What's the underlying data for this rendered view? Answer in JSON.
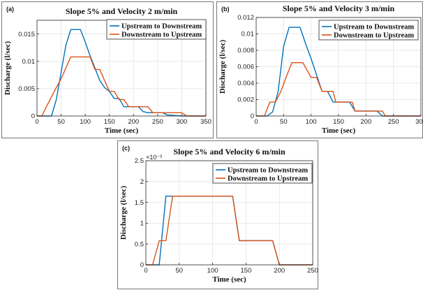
{
  "colors": {
    "upstream": "#0072BD",
    "downstream": "#D95319",
    "grid": "#e3e3e3",
    "axis": "#262626"
  },
  "legend": {
    "upstream": "Upstream to Downstream",
    "downstream": "Downstream to Upstream"
  },
  "chart_data": [
    {
      "panel_label": "(a)",
      "type": "line",
      "title": "Slope 5% and Velocity 2 m/min",
      "xlabel": "Time (sec)",
      "ylabel": "Discharge (l/sec)",
      "xlim": [
        0,
        350
      ],
      "ylim": [
        0,
        0.0175
      ],
      "xticks": [
        0,
        50,
        100,
        150,
        200,
        250,
        300,
        350
      ],
      "yticks": [
        0,
        0.005,
        0.01,
        0.015
      ],
      "ytick_labels": [
        "0",
        "0.005",
        "0.01",
        "0.015"
      ],
      "y_exponent": "",
      "grid": true,
      "legend_position": "top-right",
      "series": [
        {
          "name": "Upstream to Downstream",
          "color": "#0072BD",
          "x": [
            0,
            30,
            40,
            50,
            60,
            70,
            90,
            100,
            110,
            120,
            130,
            140,
            150,
            160,
            170,
            180,
            190,
            210,
            220,
            230,
            260,
            270,
            300,
            350
          ],
          "y": [
            0,
            0,
            0.003,
            0.008,
            0.013,
            0.0158,
            0.0158,
            0.0135,
            0.011,
            0.0088,
            0.0065,
            0.0052,
            0.0045,
            0.0032,
            0.0032,
            0.0017,
            0.0017,
            0.0017,
            0.0008,
            0.0006,
            0.0006,
            0.0002,
            0,
            0
          ]
        },
        {
          "name": "Downstream to Upstream",
          "color": "#D95319",
          "x": [
            0,
            10,
            20,
            30,
            40,
            50,
            60,
            70,
            110,
            120,
            130,
            140,
            150,
            160,
            170,
            180,
            190,
            200,
            230,
            240,
            300,
            310,
            350
          ],
          "y": [
            0,
            0,
            0.0018,
            0.0035,
            0.0052,
            0.0068,
            0.0088,
            0.0108,
            0.0108,
            0.0085,
            0.0085,
            0.0065,
            0.0045,
            0.0045,
            0.003,
            0.003,
            0.0017,
            0.0017,
            0.0017,
            0.0006,
            0.0006,
            0,
            0
          ]
        }
      ]
    },
    {
      "panel_label": "(b)",
      "type": "line",
      "title": "Slope 5% and Velocity 3 m/min",
      "xlabel": "Time (sec)",
      "ylabel": "Discharge (l/sec)",
      "xlim": [
        0,
        300
      ],
      "ylim": [
        0,
        0.012
      ],
      "xticks": [
        0,
        50,
        100,
        150,
        200,
        250,
        300
      ],
      "yticks": [
        0,
        0.002,
        0.004,
        0.006,
        0.008,
        0.01,
        0.012
      ],
      "ytick_labels": [
        "0",
        "0.002",
        "0.004",
        "0.006",
        "0.008",
        "0.01",
        "0.012"
      ],
      "y_exponent": "",
      "grid": true,
      "legend_position": "top-right",
      "series": [
        {
          "name": "Upstream to Downstream",
          "color": "#0072BD",
          "x": [
            0,
            20,
            30,
            40,
            50,
            60,
            80,
            90,
            100,
            110,
            120,
            130,
            140,
            150,
            170,
            180,
            190,
            210,
            220,
            230,
            300
          ],
          "y": [
            0,
            0,
            0.0005,
            0.003,
            0.0085,
            0.0108,
            0.0108,
            0.0088,
            0.007,
            0.005,
            0.003,
            0.003,
            0.0017,
            0.0017,
            0.0017,
            0.0006,
            0.0006,
            0.0006,
            0.0006,
            0,
            0
          ]
        },
        {
          "name": "Downstream to Upstream",
          "color": "#D95319",
          "x": [
            0,
            15,
            25,
            35,
            45,
            55,
            65,
            85,
            100,
            110,
            120,
            140,
            145,
            175,
            180,
            220,
            230,
            235,
            300
          ],
          "y": [
            0,
            0,
            0.0017,
            0.0017,
            0.003,
            0.0048,
            0.0065,
            0.0065,
            0.0047,
            0.0047,
            0.003,
            0.003,
            0.0017,
            0.0017,
            0.0006,
            0.0006,
            0.0006,
            0,
            0
          ]
        }
      ]
    },
    {
      "panel_label": "(c)",
      "type": "line",
      "title": "Slope 5% and Velocity 6 m/min",
      "xlabel": "Time (sec)",
      "ylabel": "Discharge (l/sec)",
      "xlim": [
        0,
        250
      ],
      "ylim": [
        0,
        0.0025
      ],
      "xticks": [
        0,
        50,
        100,
        150,
        200,
        250
      ],
      "yticks": [
        0,
        0.0005,
        0.001,
        0.0015,
        0.002,
        0.0025
      ],
      "ytick_labels": [
        "0",
        "0.5",
        "1",
        "1.5",
        "2",
        "2.5"
      ],
      "y_exponent": "×10⁻³",
      "grid": true,
      "legend_position": "top-right",
      "series": [
        {
          "name": "Upstream to Downstream",
          "color": "#0072BD",
          "x": [
            0,
            20,
            30,
            130,
            140,
            190,
            200,
            250
          ],
          "y": [
            0,
            0,
            0.00165,
            0.00165,
            0.00058,
            0.00058,
            0,
            0
          ]
        },
        {
          "name": "Downstream to Upstream",
          "color": "#D95319",
          "x": [
            0,
            10,
            20,
            30,
            40,
            130,
            140,
            190,
            200,
            250
          ],
          "y": [
            0,
            0,
            0.00058,
            0.00058,
            0.00165,
            0.00165,
            0.00058,
            0.00058,
            0,
            0
          ]
        }
      ]
    }
  ]
}
